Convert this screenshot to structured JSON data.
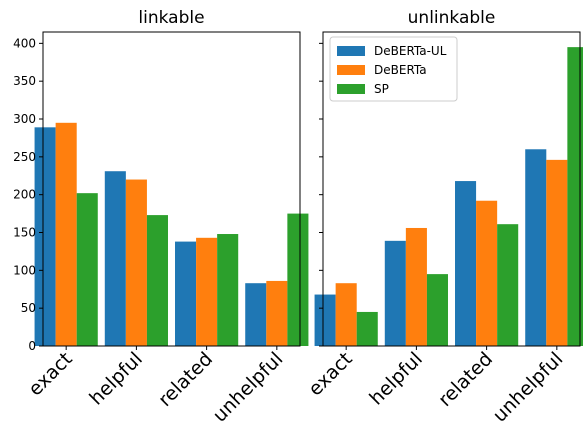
{
  "chart_data": [
    {
      "type": "bar",
      "title": "linkable",
      "categories": [
        "exact",
        "helpful",
        "related",
        "unhelpful"
      ],
      "ylim": [
        0,
        415
      ],
      "yticks": [
        0,
        50,
        100,
        150,
        200,
        250,
        300,
        350,
        400
      ],
      "show_ytick_labels": true,
      "grid": false,
      "series": [
        {
          "name": "DeBERTa-UL",
          "color": "#1f77b4",
          "values": [
            289,
            231,
            138,
            83
          ]
        },
        {
          "name": "DeBERTa",
          "color": "#ff7f0e",
          "values": [
            295,
            220,
            143,
            86
          ]
        },
        {
          "name": "SP",
          "color": "#2ca02c",
          "values": [
            202,
            173,
            148,
            175
          ]
        }
      ]
    },
    {
      "type": "bar",
      "title": "unlinkable",
      "categories": [
        "exact",
        "helpful",
        "related",
        "unhelpful"
      ],
      "ylim": [
        0,
        415
      ],
      "yticks": [
        0,
        50,
        100,
        150,
        200,
        250,
        300,
        350,
        400
      ],
      "show_ytick_labels": false,
      "grid": false,
      "legend": {
        "position": "top-left",
        "entries": [
          "DeBERTa-UL",
          "DeBERTa",
          "SP"
        ]
      },
      "series": [
        {
          "name": "DeBERTa-UL",
          "color": "#1f77b4",
          "values": [
            68,
            139,
            218,
            260
          ]
        },
        {
          "name": "DeBERTa",
          "color": "#ff7f0e",
          "values": [
            83,
            156,
            192,
            246
          ]
        },
        {
          "name": "SP",
          "color": "#2ca02c",
          "values": [
            45,
            95,
            161,
            395
          ]
        }
      ]
    }
  ]
}
